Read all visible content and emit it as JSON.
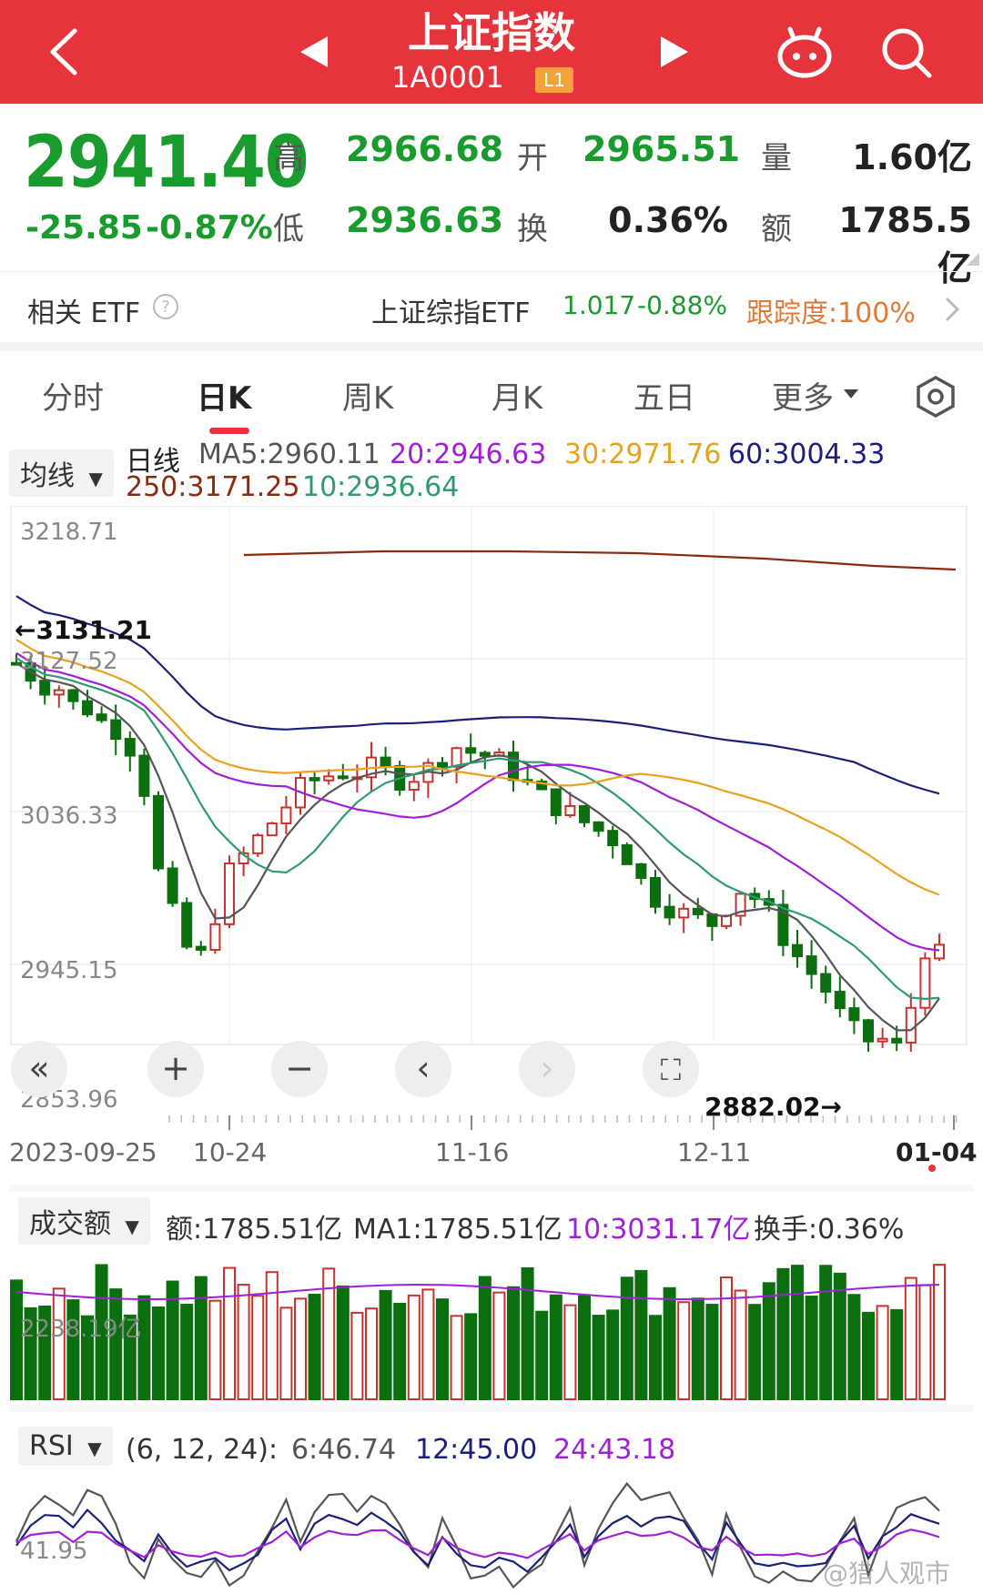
{
  "header": {
    "title": "上证指数",
    "code": "1A0001",
    "badge": "L1",
    "icons": [
      "back-icon",
      "prev-stock-icon",
      "next-stock-icon",
      "robot-icon",
      "search-icon"
    ]
  },
  "quote": {
    "price": "2941.40",
    "change": "-25.85",
    "change_pct": "-0.87%",
    "high_label": "高",
    "high": "2966.68",
    "open_label": "开",
    "open": "2965.51",
    "volume_label": "量",
    "volume": "1.60亿",
    "low_label": "低",
    "low": "2936.63",
    "turnover_label": "换",
    "turnover": "0.36%",
    "amount_label": "额",
    "amount": "1785.5亿"
  },
  "etf": {
    "label": "相关 ETF",
    "name": "上证综指ETF",
    "price": "1.017",
    "change": "-0.88%",
    "tracking": "跟踪度:100%"
  },
  "tabs": [
    "分时",
    "日K",
    "周K",
    "月K",
    "五日",
    "更多"
  ],
  "active_tab": "日K",
  "ma_bar": {
    "selector": "均线",
    "kind": "日线",
    "ma5": "MA5:2960.11",
    "ma20": "20:2946.63",
    "ma30": "30:2971.76",
    "ma60": "60:3004.33",
    "ma250": "250:3171.25",
    "ma10": "10:2936.64"
  },
  "price_axis": {
    "top": "3218.71",
    "mid1": "3127.52",
    "mid2": "3036.33",
    "mid3": "2945.15",
    "bottom": "2853.96",
    "max_marker": "←3131.21",
    "min_marker": "2882.02→"
  },
  "dates": [
    "2023-09-25",
    "10-24",
    "11-16",
    "12-11",
    "01-04"
  ],
  "volume": {
    "selector": "成交额",
    "amount": "额:1785.51亿",
    "ma1": "MA1:1785.51亿",
    "ma10": "10:3031.17亿",
    "turnover": "换手:0.36%",
    "axis_top": "2238.19亿"
  },
  "rsi": {
    "selector": "RSI",
    "params": "(6, 12, 24):",
    "r6": "6:46.74",
    "r12": "12:45.00",
    "r24": "24:43.18",
    "axis": "41.95"
  },
  "watermark": "@猎人观市",
  "colors": {
    "header": "#e5343b",
    "down": "#0b6f0f",
    "up": "#c8322d",
    "ma5": "#555555",
    "ma10": "#2e9b70",
    "ma20": "#a020d8",
    "ma30": "#e8a21d",
    "ma60": "#1b1f7a",
    "ma250": "#8b2a10",
    "etf_accent": "#e07a3b"
  }
}
